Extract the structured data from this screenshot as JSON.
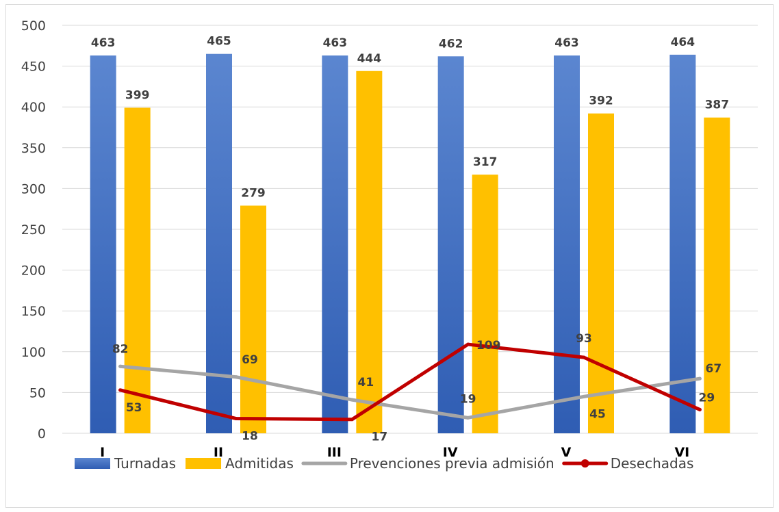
{
  "chart_data": {
    "type": "bar",
    "categories": [
      "I",
      "II",
      "III",
      "IV",
      "V",
      "VI"
    ],
    "ylim": [
      0,
      500
    ],
    "yticks": [
      0,
      50,
      100,
      150,
      200,
      250,
      300,
      350,
      400,
      450,
      500
    ],
    "grid": true,
    "legend_position": "bottom",
    "series": [
      {
        "name": "Turnadas",
        "kind": "bar",
        "color": "#4472C4",
        "values": [
          463,
          465,
          463,
          462,
          463,
          464
        ]
      },
      {
        "name": "Admitidas",
        "kind": "bar",
        "color": "#FFC000",
        "values": [
          399,
          279,
          444,
          317,
          392,
          387
        ]
      },
      {
        "name": "Prevenciones previa admisión",
        "kind": "line",
        "color": "#A5A5A5",
        "values": [
          82,
          69,
          41,
          19,
          45,
          67
        ]
      },
      {
        "name": "Desechadas",
        "kind": "line",
        "color": "#C00000",
        "values": [
          53,
          18,
          17,
          109,
          93,
          29
        ]
      }
    ]
  }
}
